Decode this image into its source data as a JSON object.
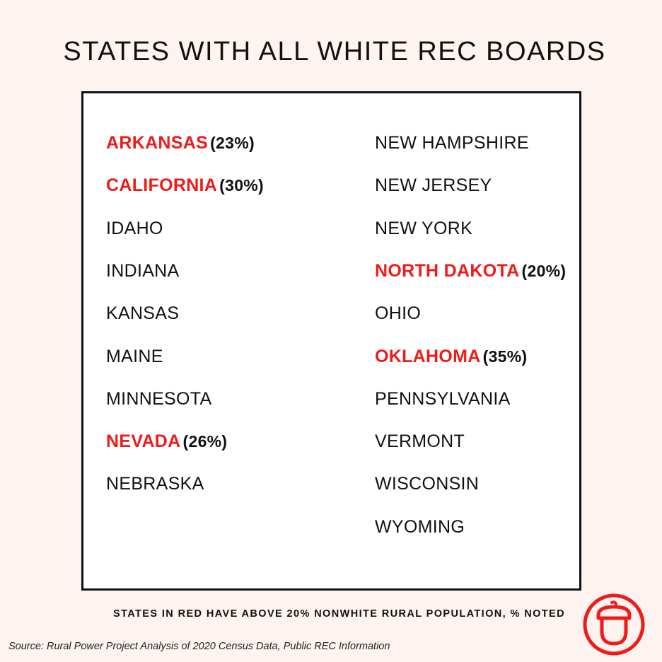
{
  "title": "STATES WITH ALL WHITE REC BOARDS",
  "colors": {
    "highlight": "#ef1b1b",
    "text": "#111111",
    "background": "#fdf3ef"
  },
  "left_column": [
    {
      "name": "ARKANSAS",
      "pct": "(23%)",
      "highlight": true
    },
    {
      "name": "CALIFORNIA",
      "pct": "(30%)",
      "highlight": true
    },
    {
      "name": "IDAHO",
      "pct": "",
      "highlight": false
    },
    {
      "name": "INDIANA",
      "pct": "",
      "highlight": false
    },
    {
      "name": "KANSAS",
      "pct": "",
      "highlight": false
    },
    {
      "name": "MAINE",
      "pct": "",
      "highlight": false
    },
    {
      "name": "MINNESOTA",
      "pct": "",
      "highlight": false
    },
    {
      "name": "NEVADA",
      "pct": "(26%)",
      "highlight": true
    },
    {
      "name": "NEBRASKA",
      "pct": "",
      "highlight": false
    }
  ],
  "right_column": [
    {
      "name": "NEW HAMPSHIRE",
      "pct": "",
      "highlight": false
    },
    {
      "name": "NEW JERSEY",
      "pct": "",
      "highlight": false
    },
    {
      "name": "NEW YORK",
      "pct": "",
      "highlight": false
    },
    {
      "name": "NORTH DAKOTA",
      "pct": "(20%)",
      "highlight": true
    },
    {
      "name": "OHIO",
      "pct": "",
      "highlight": false
    },
    {
      "name": "OKLAHOMA",
      "pct": "(35%)",
      "highlight": true
    },
    {
      "name": "PENNSYLVANIA",
      "pct": "",
      "highlight": false
    },
    {
      "name": "VERMONT",
      "pct": "",
      "highlight": false
    },
    {
      "name": "WISCONSIN",
      "pct": "",
      "highlight": false
    },
    {
      "name": "WYOMING",
      "pct": "",
      "highlight": false
    }
  ],
  "note": "STATES IN RED HAVE ABOVE 20% NONWHITE RURAL POPULATION, % NOTED",
  "source": "Source: Rural Power Project Analysis of 2020 Census Data, Public REC Information",
  "logo_icon": "acorn-icon"
}
